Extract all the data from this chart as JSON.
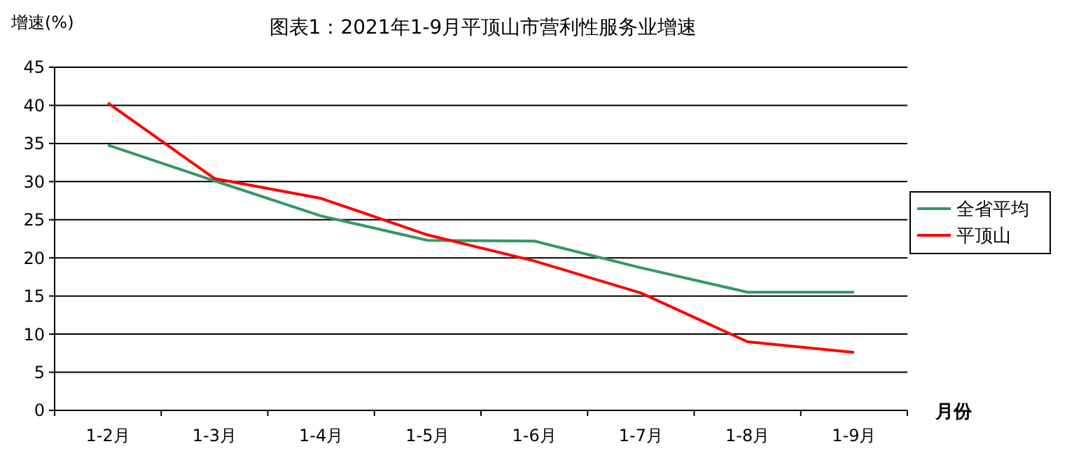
{
  "chart_data": {
    "type": "line",
    "title": "图表1：2021年1-9月平顶山市营利性服务业增速",
    "ylabel": "增速(%)",
    "xlabel": "月份",
    "categories": [
      "1-2月",
      "1-3月",
      "1-4月",
      "1-5月",
      "1-6月",
      "1-7月",
      "1-8月",
      "1-9月"
    ],
    "series": [
      {
        "name": "全省平均",
        "color": "#339966",
        "values": [
          34.8,
          30.1,
          25.5,
          22.3,
          22.2,
          18.7,
          15.5,
          15.5
        ]
      },
      {
        "name": "平顶山",
        "color": "#ff0000",
        "values": [
          40.3,
          30.4,
          27.8,
          23.0,
          19.6,
          15.4,
          9.0,
          7.6
        ]
      }
    ],
    "ylim": [
      0,
      45
    ],
    "yticks": [
      0,
      5,
      10,
      15,
      20,
      25,
      30,
      35,
      40,
      45
    ],
    "grid": "y",
    "legend": "right",
    "marker": "none",
    "line_style": "solid"
  }
}
